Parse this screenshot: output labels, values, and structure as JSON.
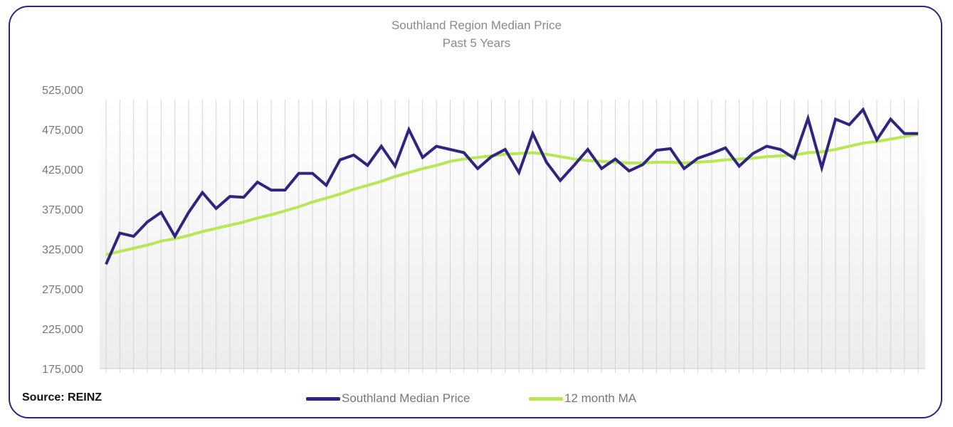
{
  "chart_data": {
    "type": "line",
    "title": "Southland Region Median Price",
    "subtitle": "Past 5 Years",
    "xlabel": "",
    "ylabel": "",
    "ylim": [
      175000,
      525000
    ],
    "yticks": [
      "175,000",
      "225,000",
      "275,000",
      "325,000",
      "375,000",
      "425,000",
      "475,000",
      "525,000"
    ],
    "ytick_values": [
      175000,
      225000,
      275000,
      325000,
      375000,
      425000,
      475000,
      525000
    ],
    "grid": "vertical",
    "legend_position": "bottom",
    "series": [
      {
        "name": "Southland Median Price",
        "color": "#2e2580",
        "values": [
          306000,
          345000,
          341000,
          359000,
          371000,
          341000,
          371000,
          396000,
          376000,
          391000,
          390000,
          409000,
          399000,
          399000,
          420000,
          420000,
          405000,
          437000,
          443000,
          430000,
          454000,
          429000,
          475000,
          440000,
          454000,
          450000,
          446000,
          426000,
          441000,
          450000,
          421000,
          470000,
          434000,
          411000,
          430000,
          450000,
          426000,
          438000,
          423000,
          431000,
          449000,
          451000,
          426000,
          439000,
          445000,
          452000,
          429000,
          445000,
          454000,
          450000,
          439000,
          489000,
          427000,
          488000,
          481000,
          500000,
          462000,
          488000,
          470000,
          470000
        ]
      },
      {
        "name": "12 month MA",
        "color": "#b5e853",
        "values": [
          318000,
          322000,
          326000,
          330000,
          335000,
          338000,
          342000,
          347000,
          351000,
          355000,
          359000,
          364000,
          368000,
          373000,
          378000,
          384000,
          389000,
          394000,
          400000,
          405000,
          410000,
          416000,
          421000,
          426000,
          430000,
          435000,
          438000,
          440000,
          442000,
          444000,
          445000,
          446000,
          444000,
          441000,
          438000,
          436000,
          435000,
          434000,
          433000,
          433000,
          434000,
          434000,
          433000,
          434000,
          435000,
          437000,
          438000,
          439000,
          441000,
          442000,
          443000,
          446000,
          447000,
          450000,
          454000,
          458000,
          460000,
          463000,
          466000,
          469000
        ]
      }
    ]
  },
  "source": "Source: REINZ"
}
